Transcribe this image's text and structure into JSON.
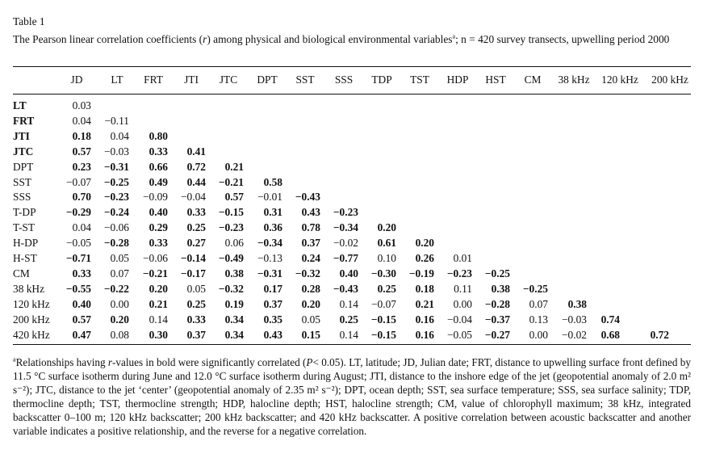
{
  "table_label": "Table 1",
  "caption_pre": "The Pearson linear correlation coefficients (",
  "caption_r": "r",
  "caption_mid": ") among physical and biological environmental variables",
  "caption_sup": "a",
  "caption_n": "; n = 420 survey transects, upwelling period 2000",
  "columns": [
    "JD",
    "LT",
    "FRT",
    "JTI",
    "JTC",
    "DPT",
    "SST",
    "SSS",
    "TDP",
    "TST",
    "HDP",
    "HST",
    "CM",
    "38 kHz",
    "120 kHz",
    "200 kHz"
  ],
  "rows": [
    {
      "label": "LT",
      "bold_label": true,
      "cells": [
        [
          "0.03",
          0
        ]
      ]
    },
    {
      "label": "FRT",
      "bold_label": true,
      "cells": [
        [
          "0.04",
          0
        ],
        [
          "−0.11",
          0
        ]
      ]
    },
    {
      "label": "JTI",
      "bold_label": true,
      "cells": [
        [
          "0.18",
          1
        ],
        [
          "0.04",
          0
        ],
        [
          "0.80",
          1
        ]
      ]
    },
    {
      "label": "JTC",
      "bold_label": true,
      "cells": [
        [
          "0.57",
          1
        ],
        [
          "−0.03",
          0
        ],
        [
          "0.33",
          1
        ],
        [
          "0.41",
          1
        ]
      ]
    },
    {
      "label": "DPT",
      "bold_label": false,
      "cells": [
        [
          "0.23",
          1
        ],
        [
          "−0.31",
          1
        ],
        [
          "0.66",
          1
        ],
        [
          "0.72",
          1
        ],
        [
          "0.21",
          1
        ]
      ]
    },
    {
      "label": "SST",
      "bold_label": false,
      "cells": [
        [
          "−0.07",
          0
        ],
        [
          "−0.25",
          1
        ],
        [
          "0.49",
          1
        ],
        [
          "0.44",
          1
        ],
        [
          "−0.21",
          1
        ],
        [
          "0.58",
          1
        ]
      ]
    },
    {
      "label": "SSS",
      "bold_label": false,
      "cells": [
        [
          "0.70",
          1
        ],
        [
          "−0.23",
          1
        ],
        [
          "−0.09",
          0
        ],
        [
          "−0.04",
          0
        ],
        [
          "0.57",
          1
        ],
        [
          "−0.01",
          0
        ],
        [
          "−0.43",
          1
        ]
      ]
    },
    {
      "label": "T-DP",
      "bold_label": false,
      "cells": [
        [
          "−0.29",
          1
        ],
        [
          "−0.24",
          1
        ],
        [
          "0.40",
          1
        ],
        [
          "0.33",
          1
        ],
        [
          "−0.15",
          1
        ],
        [
          "0.31",
          1
        ],
        [
          "0.43",
          1
        ],
        [
          "−0.23",
          1
        ]
      ]
    },
    {
      "label": "T-ST",
      "bold_label": false,
      "cells": [
        [
          "0.04",
          0
        ],
        [
          "−0.06",
          0
        ],
        [
          "0.29",
          1
        ],
        [
          "0.25",
          1
        ],
        [
          "−0.23",
          1
        ],
        [
          "0.36",
          1
        ],
        [
          "0.78",
          1
        ],
        [
          "−0.34",
          1
        ],
        [
          "0.20",
          1
        ]
      ]
    },
    {
      "label": "H-DP",
      "bold_label": false,
      "cells": [
        [
          "−0.05",
          0
        ],
        [
          "−0.28",
          1
        ],
        [
          "0.33",
          1
        ],
        [
          "0.27",
          1
        ],
        [
          "0.06",
          0
        ],
        [
          "−0.34",
          1
        ],
        [
          "0.37",
          1
        ],
        [
          "−0.02",
          0
        ],
        [
          "0.61",
          1
        ],
        [
          "0.20",
          1
        ]
      ]
    },
    {
      "label": "H-ST",
      "bold_label": false,
      "cells": [
        [
          "−0.71",
          1
        ],
        [
          "0.05",
          0
        ],
        [
          "−0.06",
          0
        ],
        [
          "−0.14",
          1
        ],
        [
          "−0.49",
          1
        ],
        [
          "−0.13",
          0
        ],
        [
          "0.24",
          1
        ],
        [
          "−0.77",
          1
        ],
        [
          "0.10",
          0
        ],
        [
          "0.26",
          1
        ],
        [
          "0.01",
          0
        ]
      ]
    },
    {
      "label": "CM",
      "bold_label": false,
      "cells": [
        [
          "0.33",
          1
        ],
        [
          "0.07",
          0
        ],
        [
          "−0.21",
          1
        ],
        [
          "−0.17",
          1
        ],
        [
          "0.38",
          1
        ],
        [
          "−0.31",
          1
        ],
        [
          "−0.32",
          1
        ],
        [
          "0.40",
          1
        ],
        [
          "−0.30",
          1
        ],
        [
          "−0.19",
          1
        ],
        [
          "−0.23",
          1
        ],
        [
          "−0.25",
          1
        ]
      ]
    },
    {
      "label": "38 kHz",
      "bold_label": false,
      "cells": [
        [
          "−0.55",
          1
        ],
        [
          "−0.22",
          1
        ],
        [
          "0.20",
          1
        ],
        [
          "0.05",
          0
        ],
        [
          "−0.32",
          1
        ],
        [
          "0.17",
          1
        ],
        [
          "0.28",
          1
        ],
        [
          "−0.43",
          1
        ],
        [
          "0.25",
          1
        ],
        [
          "0.18",
          1
        ],
        [
          "0.11",
          0
        ],
        [
          "0.38",
          1
        ],
        [
          "−0.25",
          1
        ]
      ]
    },
    {
      "label": "120 kHz",
      "bold_label": false,
      "cells": [
        [
          "0.40",
          1
        ],
        [
          "0.00",
          0
        ],
        [
          "0.21",
          1
        ],
        [
          "0.25",
          1
        ],
        [
          "0.19",
          1
        ],
        [
          "0.37",
          1
        ],
        [
          "0.20",
          1
        ],
        [
          "0.14",
          0
        ],
        [
          "−0.07",
          0
        ],
        [
          "0.21",
          1
        ],
        [
          "0.00",
          0
        ],
        [
          "−0.28",
          1
        ],
        [
          "0.07",
          0
        ],
        [
          "0.38",
          1
        ]
      ]
    },
    {
      "label": "200 kHz",
      "bold_label": false,
      "cells": [
        [
          "0.57",
          1
        ],
        [
          "0.20",
          1
        ],
        [
          "0.14",
          0
        ],
        [
          "0.33",
          1
        ],
        [
          "0.34",
          1
        ],
        [
          "0.35",
          1
        ],
        [
          "0.05",
          0
        ],
        [
          "0.25",
          1
        ],
        [
          "−0.15",
          1
        ],
        [
          "0.16",
          1
        ],
        [
          "−0.04",
          0
        ],
        [
          "−0.37",
          1
        ],
        [
          "0.13",
          0
        ],
        [
          "−0.03",
          0
        ],
        [
          "0.74",
          1
        ]
      ]
    },
    {
      "label": "420 kHz",
      "bold_label": false,
      "cells": [
        [
          "0.47",
          1
        ],
        [
          "0.08",
          0
        ],
        [
          "0.30",
          1
        ],
        [
          "0.37",
          1
        ],
        [
          "0.34",
          1
        ],
        [
          "0.43",
          1
        ],
        [
          "0.15",
          1
        ],
        [
          "0.14",
          0
        ],
        [
          "−0.15",
          1
        ],
        [
          "0.16",
          1
        ],
        [
          "−0.05",
          0
        ],
        [
          "−0.27",
          1
        ],
        [
          "0.00",
          0
        ],
        [
          "−0.02",
          0
        ],
        [
          "0.68",
          1
        ],
        [
          "0.72",
          1
        ]
      ]
    }
  ],
  "footnote": {
    "sup": "a",
    "text_1": "Relationships having ",
    "r": "r",
    "text_2": "-values in bold were significantly correlated (",
    "p": "P",
    "text_3": "< 0.05). LT, latitude; JD, Julian date; FRT, distance to upwelling surface front defined by 11.5 °C surface isotherm during June and 12.0 °C surface isotherm during August; JTI, distance to the inshore edge of the jet (geopotential anomaly of 2.0 m² s⁻²); JTC, distance to the jet ‘center’ (geopotential anomaly of 2.35 m² s⁻²); DPT, ocean depth; SST, sea surface temperature; SSS, sea surface salinity; TDP, thermocline depth; TST, thermocline strength; HDP, halocline depth; HST, halocline strength; CM, value of chlorophyll maximum; 38 kHz, integrated backscatter 0–100 m; 120 kHz backscatter; 200 kHz backscatter; and 420 kHz backscatter. A positive correlation between acoustic backscatter and another variable indicates a positive relationship, and the reverse for a negative correlation."
  }
}
